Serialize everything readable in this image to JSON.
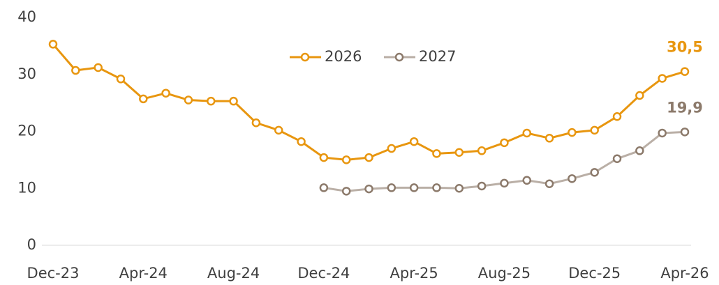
{
  "chart_data": {
    "type": "line",
    "categories": [
      "Dec-23",
      null,
      null,
      null,
      "Apr-24",
      null,
      null,
      null,
      "Aug-24",
      null,
      null,
      null,
      "Dec-24",
      null,
      null,
      null,
      "Apr-25",
      null,
      null,
      null,
      "Aug-25",
      null,
      null,
      null,
      "Dec-25",
      null,
      null,
      null,
      "Apr-26"
    ],
    "series": [
      {
        "name": "2026",
        "color": "#E8960F",
        "values": [
          35.3,
          30.7,
          31.2,
          29.2,
          25.7,
          26.7,
          25.5,
          25.3,
          25.3,
          21.5,
          20.2,
          18.2,
          15.4,
          15.0,
          15.4,
          17.0,
          18.2,
          16.1,
          16.3,
          16.6,
          18.0,
          19.7,
          18.8,
          19.8,
          20.2,
          22.6,
          26.3,
          29.3,
          30.5
        ],
        "value_labels": [
          null,
          null,
          null,
          null,
          null,
          null,
          null,
          null,
          null,
          null,
          null,
          null,
          null,
          null,
          null,
          null,
          null,
          null,
          null,
          null,
          null,
          null,
          null,
          null,
          null,
          null,
          null,
          null,
          "30,5"
        ]
      },
      {
        "name": "2027",
        "color": "#8C7A6B",
        "values": [
          null,
          null,
          null,
          null,
          null,
          null,
          null,
          null,
          null,
          null,
          null,
          null,
          10.1,
          9.5,
          9.9,
          10.1,
          10.1,
          10.1,
          10.0,
          10.4,
          10.9,
          11.4,
          10.8,
          11.7,
          12.8,
          15.2,
          16.6,
          19.7,
          19.9
        ],
        "value_labels": [
          null,
          null,
          null,
          null,
          null,
          null,
          null,
          null,
          null,
          null,
          null,
          null,
          null,
          null,
          null,
          null,
          null,
          null,
          null,
          null,
          null,
          null,
          null,
          null,
          null,
          null,
          null,
          null,
          "19,9"
        ]
      }
    ],
    "ylim": [
      0,
      40
    ],
    "yticks": [
      0,
      10,
      20,
      30,
      40
    ],
    "grid": false,
    "legend": "top"
  }
}
